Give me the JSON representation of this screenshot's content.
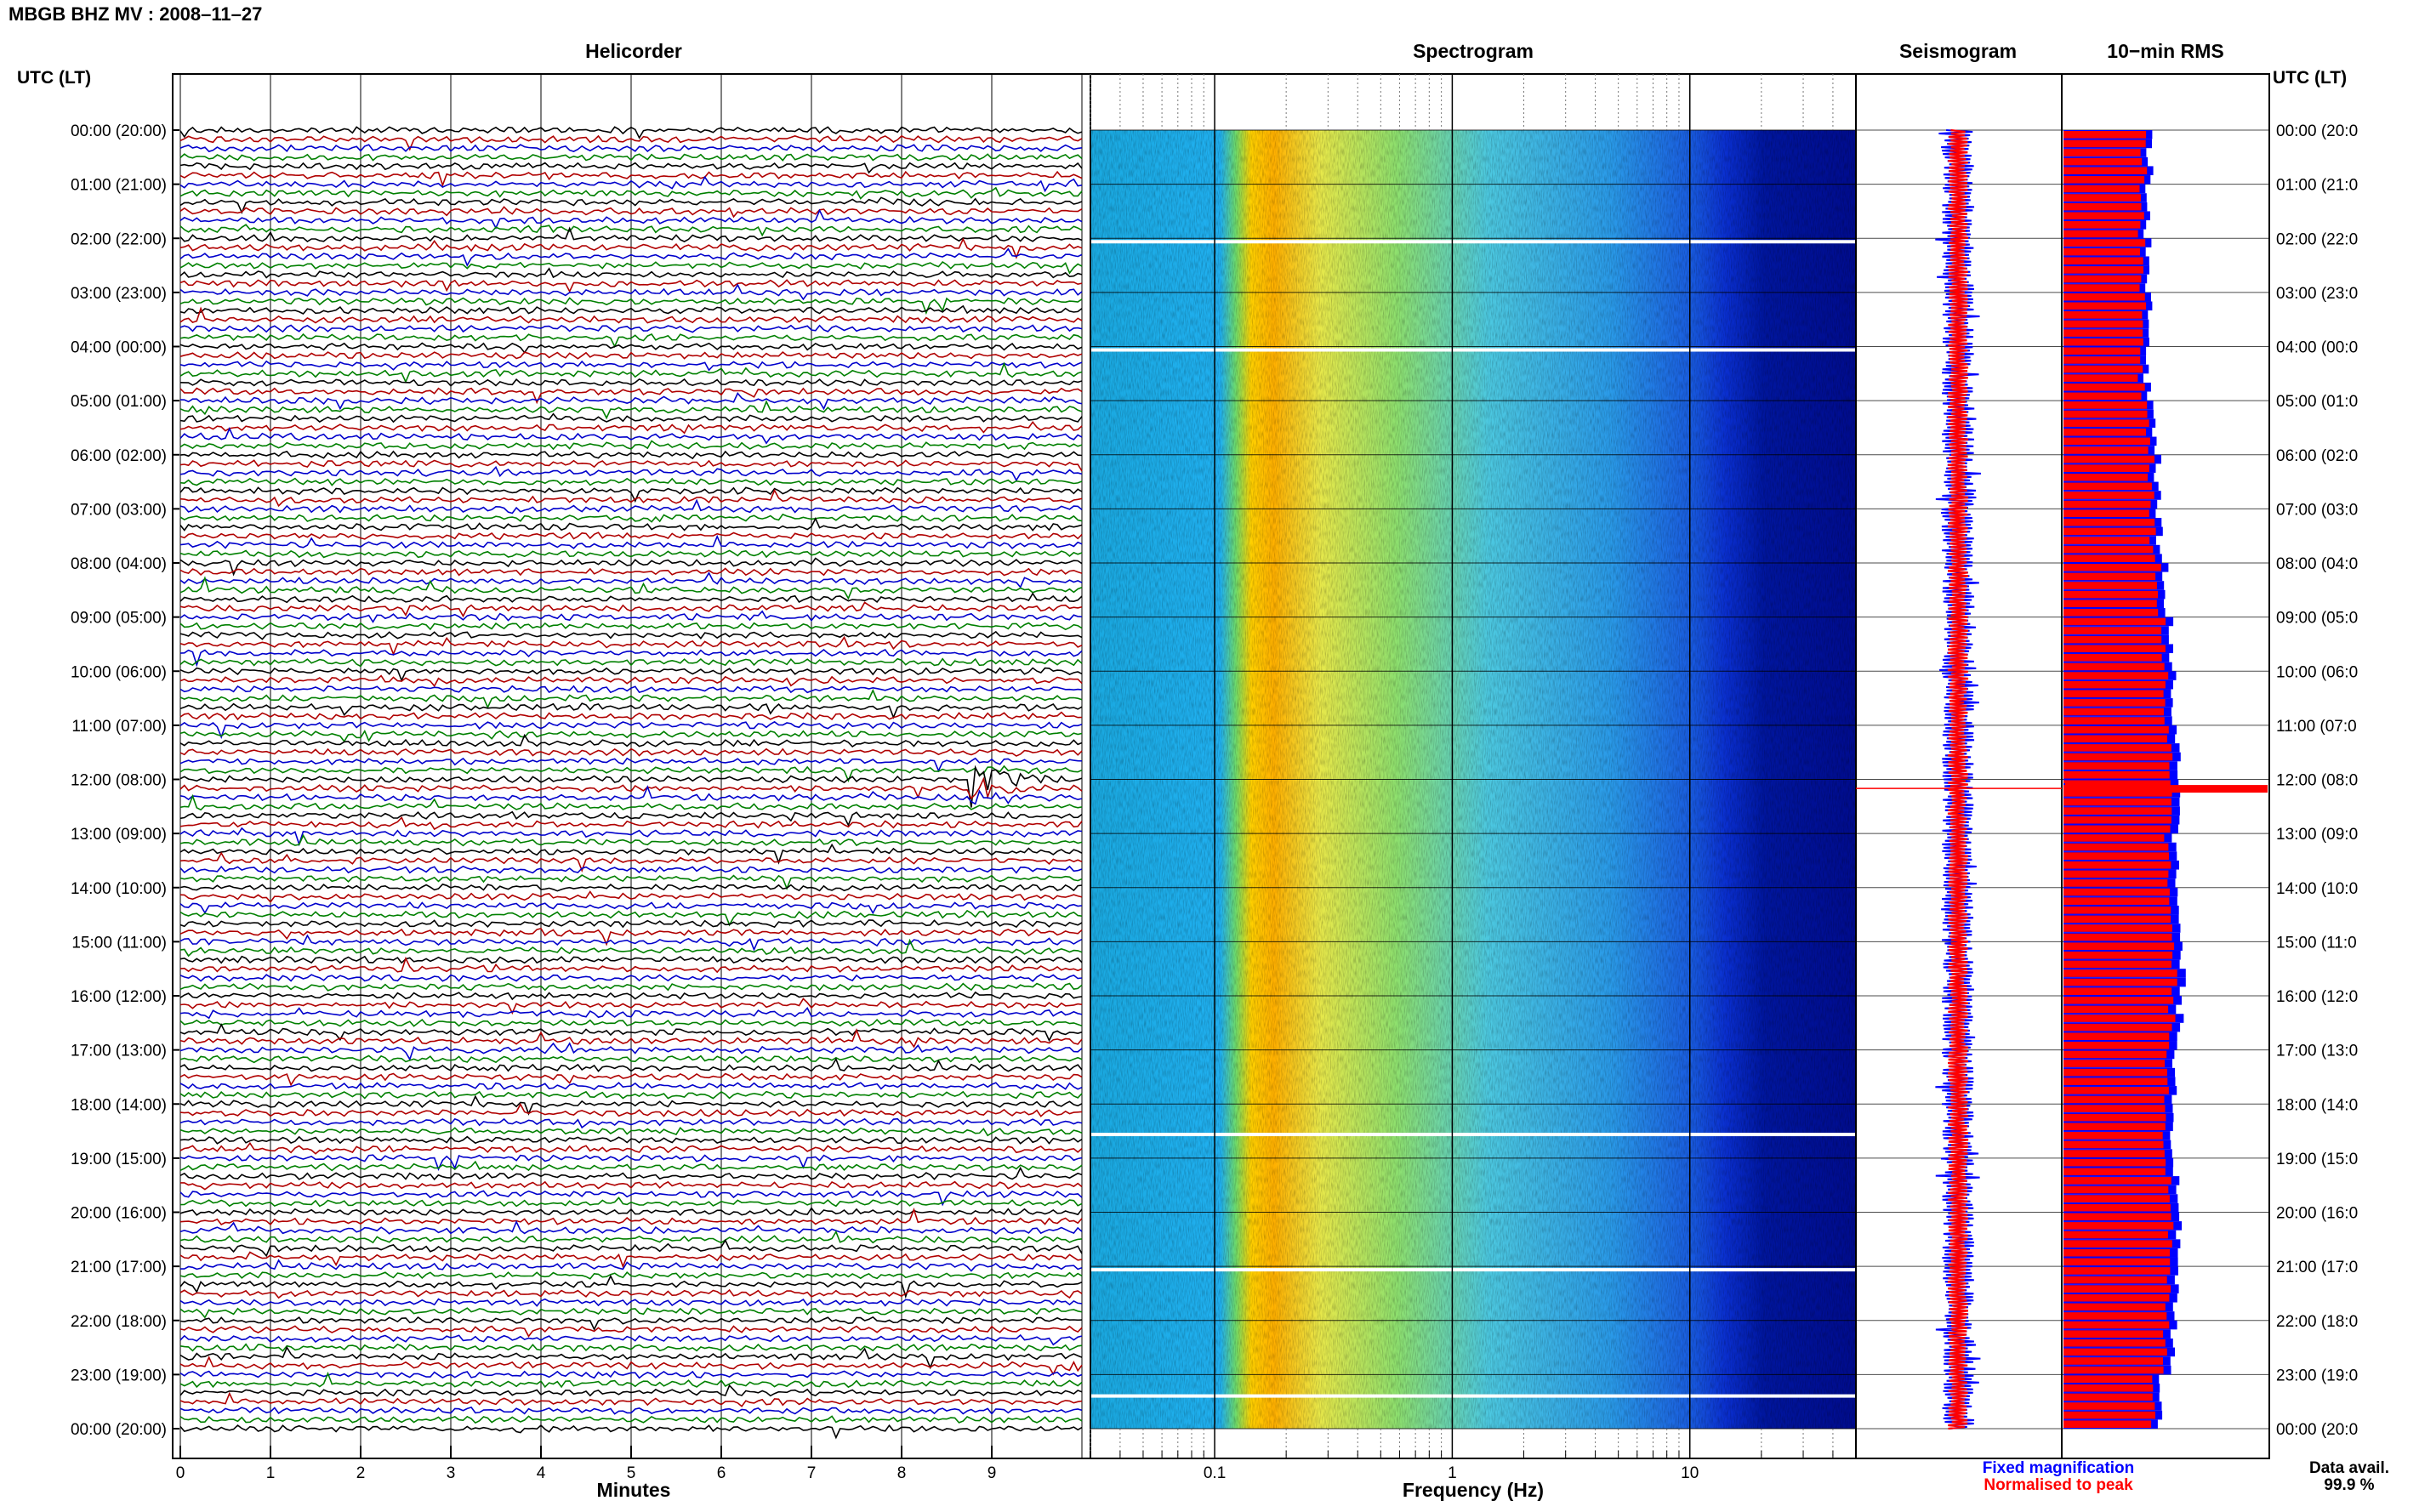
{
  "header": {
    "title": "MBGB BHZ MV : 2008–11–27",
    "utc_label_left": "UTC (LT)",
    "utc_label_right": "UTC (LT)"
  },
  "panels": {
    "helicorder": "Helicorder",
    "spectrogram": "Spectrogram",
    "seismogram": "Seismogram",
    "rms": "10−min RMS"
  },
  "time_labels": [
    "00:00 (20:00)",
    "01:00 (21:00)",
    "02:00 (22:00)",
    "03:00 (23:00)",
    "04:00 (00:00)",
    "05:00 (01:00)",
    "06:00 (02:00)",
    "07:00 (03:00)",
    "08:00 (04:00)",
    "09:00 (05:00)",
    "10:00 (06:00)",
    "11:00 (07:00)",
    "12:00 (08:00)",
    "13:00 (09:00)",
    "14:00 (10:00)",
    "15:00 (11:00)",
    "16:00 (12:00)",
    "17:00 (13:00)",
    "18:00 (14:00)",
    "19:00 (15:00)",
    "20:00 (16:00)",
    "21:00 (17:00)",
    "22:00 (18:00)",
    "23:00 (19:00)",
    "00:00 (20:00)"
  ],
  "time_labels_right": [
    "00:00 (20:0",
    "01:00 (21:0",
    "02:00 (22:0",
    "03:00 (23:0",
    "04:00 (00:0",
    "05:00 (01:0",
    "06:00 (02:0",
    "07:00 (03:0",
    "08:00 (04:0",
    "09:00 (05:0",
    "10:00 (06:0",
    "11:00 (07:0",
    "12:00 (08:0",
    "13:00 (09:0",
    "14:00 (10:0",
    "15:00 (11:0",
    "16:00 (12:0",
    "17:00 (13:0",
    "18:00 (14:0",
    "19:00 (15:0",
    "20:00 (16:0",
    "21:00 (17:0",
    "22:00 (18:0",
    "23:00 (19:0",
    "00:00 (20:0"
  ],
  "footer": {
    "fixed_magnification": "Fixed magnification",
    "normalised_to_peak": "Normalised to peak",
    "data_avail_label": "Data avail.",
    "data_avail_value": "99.9 %"
  },
  "colors": {
    "trace_cycle": [
      "#000000",
      "#b00000",
      "#0000cc",
      "#008000"
    ],
    "fixed": "#0000ff",
    "normalised": "#ff0000",
    "spectrogram_low": "#00008b",
    "spectrogram_high": "#ff0000"
  },
  "chart_data": [
    {
      "type": "line",
      "name": "helicorder",
      "title": "Helicorder",
      "xlabel": "Minutes",
      "ylabel": "UTC (LT)",
      "x_ticks": [
        0,
        1,
        2,
        3,
        4,
        5,
        6,
        7,
        8,
        9
      ],
      "xlim": [
        0,
        10
      ],
      "lines_per_hour": 6,
      "total_lines": 144,
      "events": [
        {
          "time_utc": "11:55",
          "minute": 8.9,
          "amplitude": "large"
        }
      ]
    },
    {
      "type": "heatmap",
      "name": "spectrogram",
      "title": "Spectrogram",
      "xlabel": "Frequency (Hz)",
      "x_scale": "log",
      "x_ticks": [
        0.1,
        1,
        10
      ],
      "xlim": [
        0.03,
        50
      ],
      "peak_frequency_hz": 0.18,
      "data_gaps_utc": [
        "02:00",
        "04:00",
        "18:30",
        "21:00",
        "23:20"
      ]
    },
    {
      "type": "area",
      "name": "seismogram",
      "title": "Seismogram",
      "series": [
        {
          "name": "Fixed magnification",
          "color": "#0000ff"
        },
        {
          "name": "Normalised to peak",
          "color": "#ff0000"
        }
      ],
      "events": [
        {
          "time_utc": "12:10",
          "amplitude": "clipped"
        }
      ]
    },
    {
      "type": "bar",
      "name": "rms",
      "title": "10−min RMS",
      "orientation": "horizontal",
      "bins": 144,
      "relative_level_by_hour": [
        0.42,
        0.41,
        0.42,
        0.42,
        0.41,
        0.45,
        0.46,
        0.47,
        0.5,
        0.52,
        0.54,
        0.56,
        0.58,
        0.55,
        0.56,
        0.58,
        0.57,
        0.55,
        0.54,
        0.55,
        0.56,
        0.55,
        0.54,
        0.48
      ],
      "spike": {
        "time_utc": "12:10",
        "level": 1.0
      },
      "series": [
        {
          "name": "Fixed magnification",
          "color": "#0000ff"
        },
        {
          "name": "Normalised to peak",
          "color": "#ff0000"
        }
      ]
    }
  ]
}
